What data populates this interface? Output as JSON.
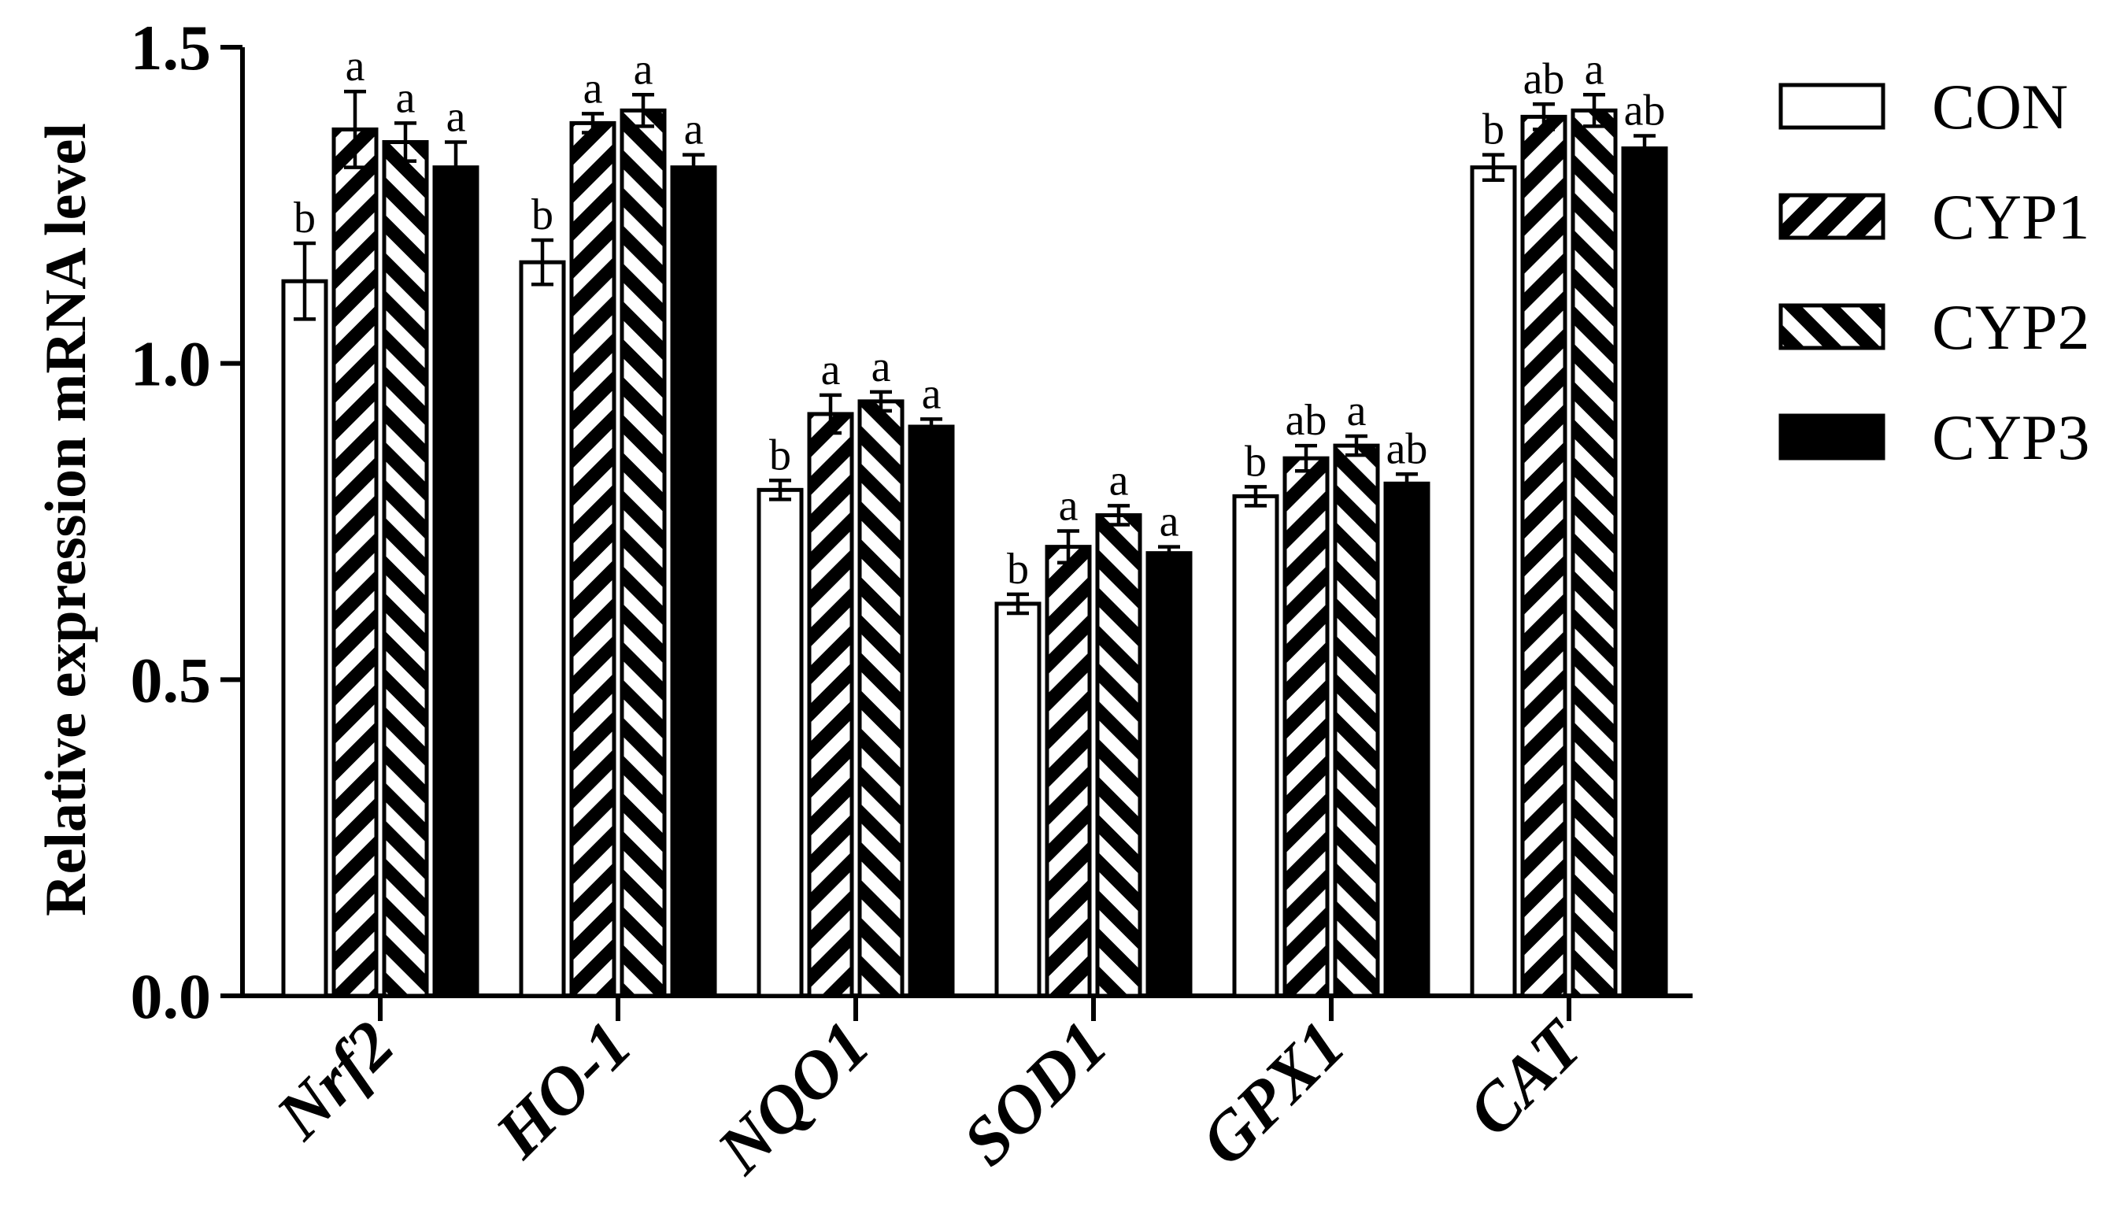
{
  "chart_data": {
    "type": "bar",
    "ylabel": "Relative expression mRNA  level",
    "xlabel": "",
    "ylim": [
      0,
      1.5
    ],
    "yticks": [
      "0.0",
      "0.5",
      "1.0",
      "1.5"
    ],
    "legend_position": "right",
    "categories": [
      "Nrf2",
      "HO-1",
      "NQO1",
      "SOD1",
      "GPX1",
      "CAT"
    ],
    "series": [
      {
        "name": "CON",
        "pattern": "open",
        "values": [
          1.13,
          1.16,
          0.8,
          0.62,
          0.79,
          1.31
        ],
        "errors": [
          0.06,
          0.035,
          0.015,
          0.015,
          0.015,
          0.02
        ],
        "letters": [
          "b",
          "b",
          "b",
          "b",
          "b",
          "b"
        ]
      },
      {
        "name": "CYP1",
        "pattern": "back-diagonal",
        "values": [
          1.37,
          1.38,
          0.92,
          0.71,
          0.85,
          1.39
        ],
        "errors": [
          0.06,
          0.015,
          0.03,
          0.025,
          0.02,
          0.02
        ],
        "letters": [
          "a",
          "a",
          "a",
          "a",
          "ab",
          "ab"
        ]
      },
      {
        "name": "CYP2",
        "pattern": "forward-diagonal",
        "values": [
          1.35,
          1.4,
          0.94,
          0.76,
          0.87,
          1.4
        ],
        "errors": [
          0.03,
          0.025,
          0.015,
          0.015,
          0.015,
          0.025
        ],
        "letters": [
          "a",
          "a",
          "a",
          "a",
          "a",
          "a"
        ]
      },
      {
        "name": "CYP3",
        "pattern": "solid",
        "values": [
          1.31,
          1.31,
          0.9,
          0.7,
          0.81,
          1.34
        ],
        "errors": [
          0.04,
          0.02,
          0.012,
          0.01,
          0.015,
          0.02
        ],
        "letters": [
          "a",
          "a",
          "a",
          "a",
          "ab",
          "ab"
        ]
      }
    ],
    "colors": {
      "ink": "#000000",
      "fill_open": "#ffffff"
    }
  }
}
